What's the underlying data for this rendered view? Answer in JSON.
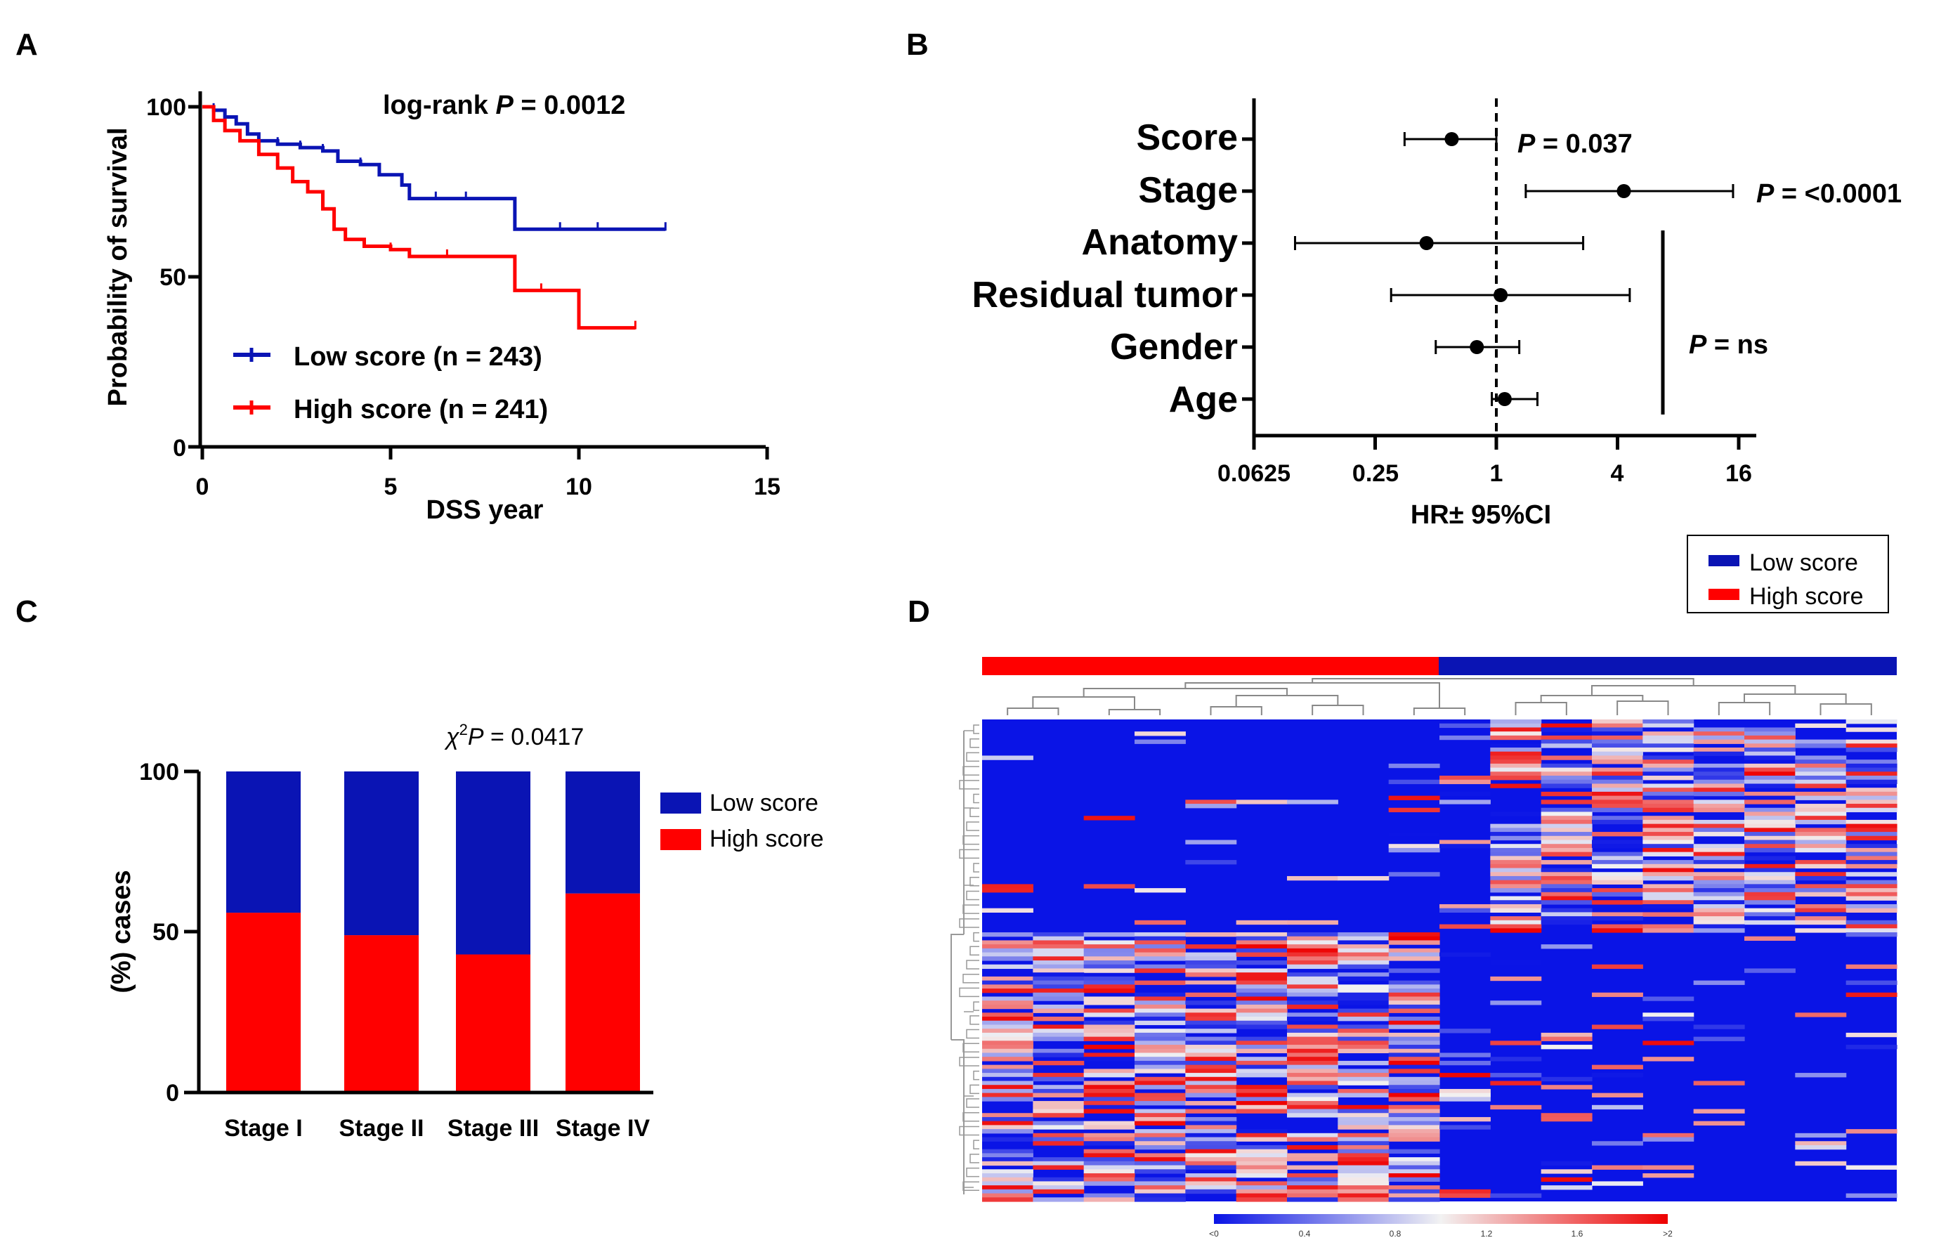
{
  "panels": {
    "a": "A",
    "b": "B",
    "c": "C",
    "d": "D"
  },
  "colors": {
    "low": "#0a14b4",
    "high": "#ff0000",
    "axis": "#000000"
  },
  "chart_data": [
    {
      "id": "A",
      "type": "line",
      "title": "",
      "annotation": {
        "prefix": "log-rank ",
        "p": "P",
        "suffix": " = 0.0012"
      },
      "xlabel": "DSS year",
      "ylabel": "Probability of survival",
      "xlim": [
        0,
        15
      ],
      "ylim": [
        0,
        100
      ],
      "xticks": [
        "0",
        "5",
        "10",
        "15"
      ],
      "yticks": [
        "0",
        "50",
        "100"
      ],
      "legend": [
        {
          "label": "Low score (n = 243)",
          "color": "#0a14b4"
        },
        {
          "label": "High score (n = 241)",
          "color": "#ff0000"
        }
      ],
      "series": [
        {
          "name": "Low score (n = 243)",
          "color": "#0a14b4",
          "x": [
            0,
            0.3,
            0.6,
            0.9,
            1.2,
            1.5,
            2.0,
            2.6,
            3.2,
            3.6,
            4.2,
            4.7,
            5.3,
            5.5,
            6.2,
            7.0,
            8.3,
            9.5,
            10.5,
            12.3
          ],
          "y": [
            100,
            99,
            97,
            95,
            92,
            90,
            89,
            88,
            87,
            84,
            83,
            80,
            77,
            73,
            73,
            73,
            64,
            64,
            64,
            64
          ]
        },
        {
          "name": "High score (n = 241)",
          "color": "#ff0000",
          "x": [
            0,
            0.3,
            0.6,
            1.0,
            1.5,
            2.0,
            2.4,
            2.8,
            3.2,
            3.5,
            3.8,
            4.3,
            5.0,
            5.5,
            6.5,
            8.3,
            9.0,
            10.0,
            11.5
          ],
          "y": [
            100,
            96,
            93,
            90,
            86,
            82,
            78,
            75,
            70,
            64,
            61,
            59,
            58,
            56,
            56,
            46,
            46,
            35,
            35
          ]
        }
      ]
    },
    {
      "id": "B",
      "type": "scatter",
      "subtype": "forest",
      "xlabel": "HR± 95%CI",
      "xscale": "log2",
      "xticks": [
        "0.0625",
        "0.25",
        "1",
        "4",
        "16"
      ],
      "reference_line": 1,
      "rows": [
        {
          "label": "Score",
          "hr": 0.6,
          "lo": 0.35,
          "hi": 1.0
        },
        {
          "label": "Stage",
          "hr": 4.3,
          "lo": 1.4,
          "hi": 15.0
        },
        {
          "label": "Anatomy",
          "hr": 0.45,
          "lo": 0.1,
          "hi": 2.7
        },
        {
          "label": "Residual tumor",
          "hr": 1.05,
          "lo": 0.3,
          "hi": 4.6
        },
        {
          "label": "Gender",
          "hr": 0.8,
          "lo": 0.5,
          "hi": 1.3
        },
        {
          "label": "Age",
          "hr": 1.1,
          "lo": 0.95,
          "hi": 1.6
        }
      ],
      "annotations": [
        {
          "p": "P",
          "text": " = 0.037"
        },
        {
          "p": "P",
          "text": " = <0.0001"
        },
        {
          "p": "P",
          "text": " = ns"
        }
      ]
    },
    {
      "id": "C",
      "type": "bar",
      "stacked": true,
      "annotation": {
        "chi": "χ",
        "sup": "2",
        "p": "P",
        "text": " = 0.0417"
      },
      "categories": [
        "Stage I",
        "Stage II",
        "Stage III",
        "Stage IV"
      ],
      "ylabel": "(%) cases",
      "ylim": [
        0,
        100
      ],
      "yticks": [
        "0",
        "50",
        "100"
      ],
      "series": [
        {
          "name": "High score",
          "color": "#ff0000",
          "values": [
            56,
            49,
            43,
            62
          ]
        },
        {
          "name": "Low score",
          "color": "#0a14b4",
          "values": [
            44,
            51,
            57,
            38
          ]
        }
      ],
      "legend": [
        {
          "label": "Low score",
          "color": "#0a14b4"
        },
        {
          "label": "High score",
          "color": "#ff0000"
        }
      ]
    },
    {
      "id": "D",
      "type": "heatmap",
      "groups": [
        {
          "label": "High score",
          "color": "#ff0000",
          "columns": 9
        },
        {
          "label": "Low score",
          "color": "#0a14b4",
          "columns": 9
        }
      ],
      "colorbar": {
        "ticks": [
          "<0",
          "0.4",
          "0.8",
          "1.2",
          "1.6",
          ">2"
        ]
      },
      "legend": [
        {
          "label": "Low score",
          "color": "#0a14b4"
        },
        {
          "label": "High score",
          "color": "#ff0000"
        }
      ]
    }
  ]
}
